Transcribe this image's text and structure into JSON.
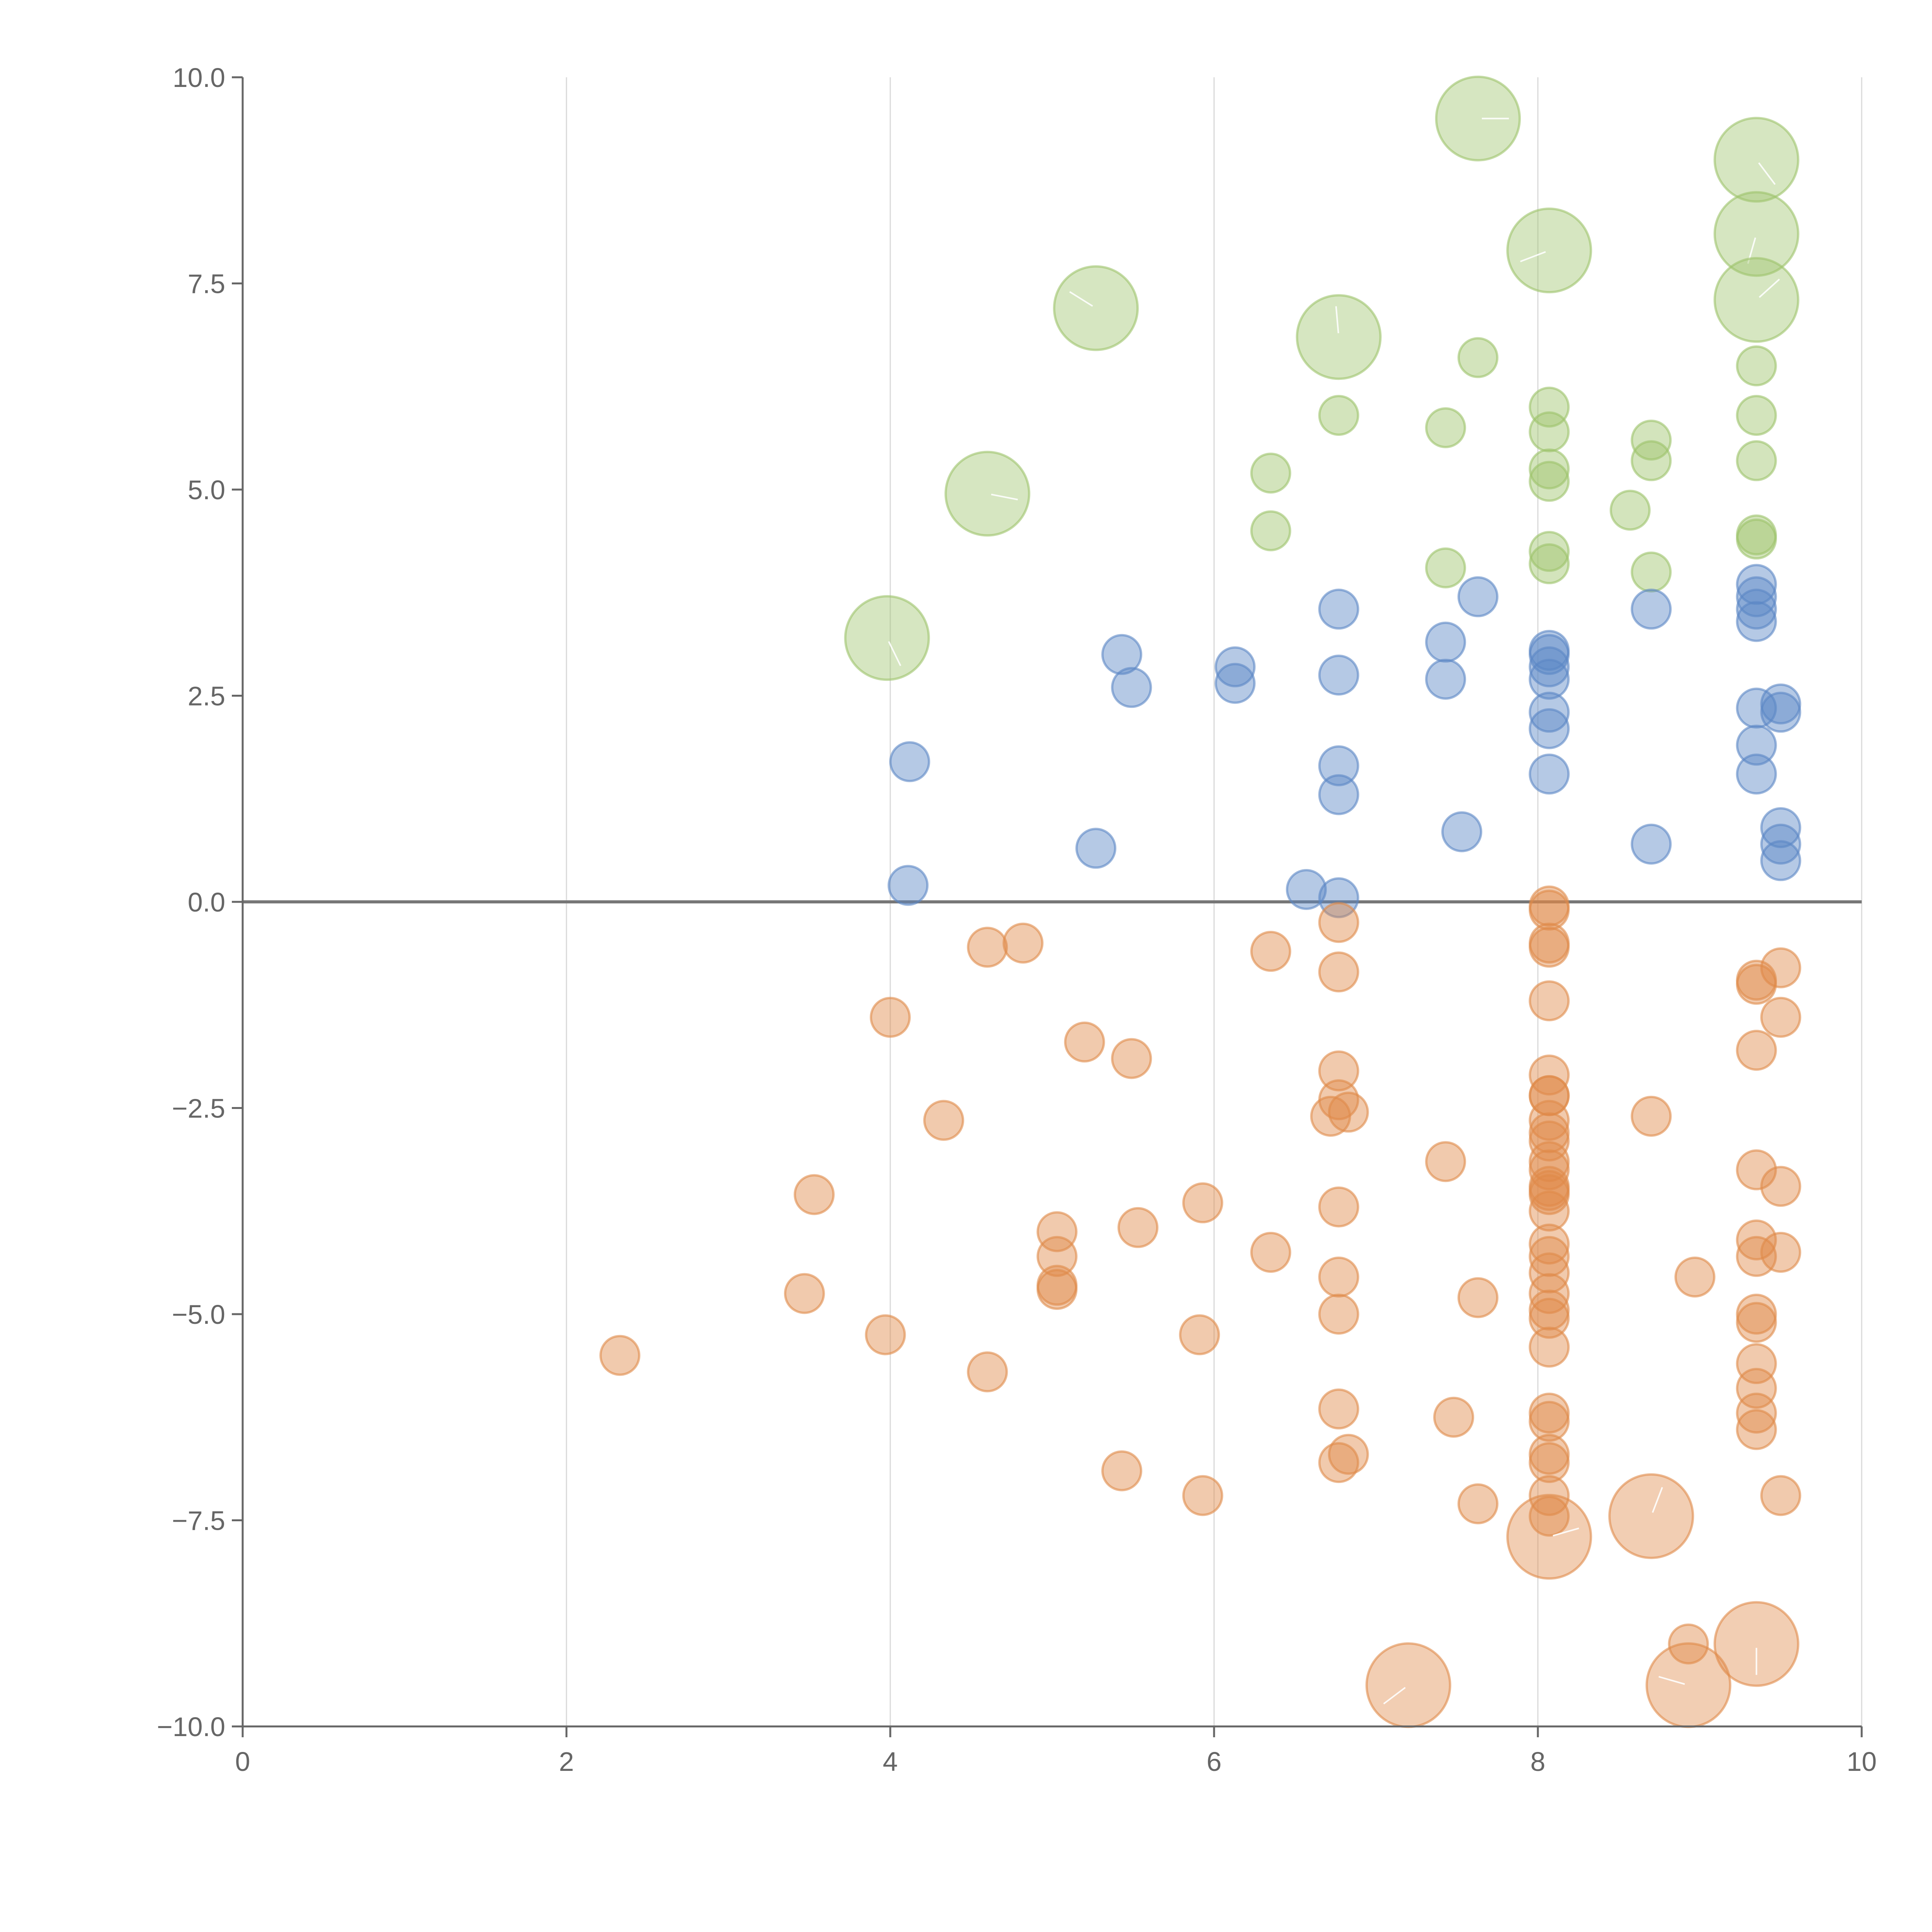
{
  "chart_data": {
    "type": "scatter",
    "title": "",
    "xlabel": "",
    "ylabel": "",
    "xlim": [
      0,
      10
    ],
    "ylim": [
      -10,
      10
    ],
    "x_ticks": [
      0,
      2,
      4,
      6,
      8,
      10
    ],
    "x_tick_labels": [
      "0",
      "2",
      "4",
      "6",
      "8",
      "10"
    ],
    "y_ticks": [
      10,
      7.5,
      5,
      2.5,
      0,
      -2.5,
      -5,
      -7.5,
      -10
    ],
    "y_tick_labels": [
      "10.0",
      "7.5",
      "5.0",
      "2.5",
      "0.0",
      "−2.5",
      "−5.0",
      "−7.5",
      "−10.0"
    ],
    "grid": "vertical",
    "reference_line_y": 0,
    "colors": {
      "green": "#9dc36b",
      "blue": "#5b87c5",
      "orange": "#e08a4a"
    },
    "series": [
      {
        "name": "green",
        "color": "#9dc36b",
        "points": [
          [
            7.63,
            9.5,
            "l"
          ],
          [
            9.35,
            9.0,
            "l"
          ],
          [
            9.35,
            8.1,
            "l"
          ],
          [
            8.07,
            7.9,
            "l"
          ],
          [
            5.27,
            7.2,
            "l"
          ],
          [
            6.77,
            6.85,
            "l"
          ],
          [
            9.35,
            7.3,
            "l"
          ],
          [
            4.6,
            4.95,
            "l"
          ],
          [
            3.98,
            3.2,
            "l"
          ],
          [
            7.63,
            6.6,
            "s"
          ],
          [
            9.35,
            6.5,
            "s"
          ],
          [
            6.77,
            5.9,
            "s"
          ],
          [
            7.43,
            5.75,
            "s"
          ],
          [
            8.07,
            6.0,
            "s"
          ],
          [
            8.07,
            5.7,
            "s"
          ],
          [
            9.35,
            5.9,
            "s"
          ],
          [
            8.7,
            5.6,
            "s"
          ],
          [
            8.7,
            5.35,
            "s"
          ],
          [
            9.35,
            5.35,
            "s"
          ],
          [
            6.35,
            5.2,
            "s"
          ],
          [
            8.07,
            5.25,
            "s"
          ],
          [
            8.07,
            5.1,
            "s"
          ],
          [
            8.57,
            4.75,
            "s"
          ],
          [
            6.35,
            4.5,
            "s"
          ],
          [
            9.35,
            4.45,
            "s"
          ],
          [
            9.35,
            4.4,
            "s"
          ],
          [
            8.07,
            4.25,
            "s"
          ],
          [
            8.07,
            4.1,
            "s"
          ],
          [
            7.43,
            4.05,
            "s"
          ],
          [
            8.7,
            4.0,
            "s"
          ]
        ]
      },
      {
        "name": "blue",
        "color": "#5b87c5",
        "points": [
          [
            6.77,
            3.55,
            "s"
          ],
          [
            7.63,
            3.7,
            "s"
          ],
          [
            8.7,
            3.55,
            "s"
          ],
          [
            9.35,
            3.85,
            "s"
          ],
          [
            9.35,
            3.7,
            "s"
          ],
          [
            9.35,
            3.55,
            "s"
          ],
          [
            9.35,
            3.4,
            "s"
          ],
          [
            5.43,
            3.0,
            "s"
          ],
          [
            7.43,
            3.15,
            "s"
          ],
          [
            8.07,
            3.05,
            "s"
          ],
          [
            8.07,
            3.0,
            "s"
          ],
          [
            8.07,
            2.85,
            "s"
          ],
          [
            6.13,
            2.85,
            "s"
          ],
          [
            6.77,
            2.75,
            "s"
          ],
          [
            7.43,
            2.7,
            "s"
          ],
          [
            8.07,
            2.7,
            "s"
          ],
          [
            6.13,
            2.65,
            "s"
          ],
          [
            5.49,
            2.6,
            "s"
          ],
          [
            9.5,
            2.4,
            "s"
          ],
          [
            9.35,
            2.35,
            "s"
          ],
          [
            8.07,
            2.3,
            "s"
          ],
          [
            9.5,
            2.3,
            "s"
          ],
          [
            8.07,
            2.1,
            "s"
          ],
          [
            9.35,
            1.9,
            "s"
          ],
          [
            4.12,
            1.7,
            "s"
          ],
          [
            6.77,
            1.65,
            "s"
          ],
          [
            8.07,
            1.55,
            "s"
          ],
          [
            9.35,
            1.55,
            "s"
          ],
          [
            6.77,
            1.3,
            "s"
          ],
          [
            9.5,
            0.9,
            "s"
          ],
          [
            7.53,
            0.85,
            "s"
          ],
          [
            9.5,
            0.7,
            "s"
          ],
          [
            8.7,
            0.7,
            "s"
          ],
          [
            5.27,
            0.65,
            "s"
          ],
          [
            9.5,
            0.5,
            "s"
          ],
          [
            4.11,
            0.2,
            "s"
          ],
          [
            6.57,
            0.15,
            "s"
          ],
          [
            6.77,
            0.05,
            "s"
          ]
        ]
      },
      {
        "name": "orange",
        "color": "#e08a4a",
        "points": [
          [
            8.07,
            -0.05,
            "s"
          ],
          [
            8.07,
            -0.1,
            "s"
          ],
          [
            6.77,
            -0.25,
            "s"
          ],
          [
            8.07,
            -0.5,
            "s"
          ],
          [
            8.07,
            -0.55,
            "s"
          ],
          [
            4.6,
            -0.55,
            "s"
          ],
          [
            4.82,
            -0.5,
            "s"
          ],
          [
            6.35,
            -0.6,
            "s"
          ],
          [
            9.5,
            -0.8,
            "s"
          ],
          [
            6.77,
            -0.85,
            "s"
          ],
          [
            9.35,
            -0.95,
            "s"
          ],
          [
            9.35,
            -1.0,
            "s"
          ],
          [
            8.07,
            -1.2,
            "s"
          ],
          [
            4.0,
            -1.4,
            "s"
          ],
          [
            9.5,
            -1.4,
            "s"
          ],
          [
            5.2,
            -1.7,
            "s"
          ],
          [
            9.35,
            -1.8,
            "s"
          ],
          [
            5.49,
            -1.9,
            "s"
          ],
          [
            6.77,
            -2.05,
            "s"
          ],
          [
            8.07,
            -2.1,
            "s"
          ],
          [
            8.07,
            -2.35,
            "s"
          ],
          [
            8.07,
            -2.35,
            "s"
          ],
          [
            6.77,
            -2.4,
            "s"
          ],
          [
            6.72,
            -2.6,
            "s"
          ],
          [
            6.83,
            -2.55,
            "s"
          ],
          [
            8.7,
            -2.6,
            "s"
          ],
          [
            4.33,
            -2.65,
            "s"
          ],
          [
            8.07,
            -2.65,
            "s"
          ],
          [
            8.07,
            -2.8,
            "s"
          ],
          [
            8.07,
            -2.9,
            "s"
          ],
          [
            7.43,
            -3.15,
            "s"
          ],
          [
            8.07,
            -3.15,
            "s"
          ],
          [
            8.07,
            -3.25,
            "s"
          ],
          [
            9.35,
            -3.25,
            "s"
          ],
          [
            8.07,
            -3.45,
            "s"
          ],
          [
            8.07,
            -3.5,
            "s"
          ],
          [
            8.07,
            -3.55,
            "s"
          ],
          [
            9.5,
            -3.45,
            "s"
          ],
          [
            3.53,
            -3.55,
            "s"
          ],
          [
            5.93,
            -3.65,
            "s"
          ],
          [
            6.77,
            -3.7,
            "s"
          ],
          [
            8.07,
            -3.75,
            "s"
          ],
          [
            5.53,
            -3.95,
            "s"
          ],
          [
            5.03,
            -4.0,
            "s"
          ],
          [
            9.35,
            -4.1,
            "s"
          ],
          [
            8.07,
            -4.15,
            "s"
          ],
          [
            6.35,
            -4.25,
            "s"
          ],
          [
            8.07,
            -4.3,
            "s"
          ],
          [
            9.35,
            -4.3,
            "s"
          ],
          [
            9.5,
            -4.25,
            "s"
          ],
          [
            5.03,
            -4.3,
            "s"
          ],
          [
            8.07,
            -4.5,
            "s"
          ],
          [
            6.77,
            -4.55,
            "s"
          ],
          [
            8.97,
            -4.55,
            "s"
          ],
          [
            5.03,
            -4.65,
            "s"
          ],
          [
            5.03,
            -4.7,
            "s"
          ],
          [
            8.07,
            -4.75,
            "s"
          ],
          [
            3.47,
            -4.75,
            "s"
          ],
          [
            7.63,
            -4.8,
            "s"
          ],
          [
            8.07,
            -4.95,
            "s"
          ],
          [
            9.35,
            -5.0,
            "s"
          ],
          [
            6.77,
            -5.0,
            "s"
          ],
          [
            8.07,
            -5.05,
            "s"
          ],
          [
            9.35,
            -5.1,
            "s"
          ],
          [
            3.97,
            -5.25,
            "s"
          ],
          [
            5.91,
            -5.25,
            "s"
          ],
          [
            8.07,
            -5.4,
            "s"
          ],
          [
            2.33,
            -5.5,
            "s"
          ],
          [
            9.35,
            -5.6,
            "s"
          ],
          [
            4.6,
            -5.7,
            "s"
          ],
          [
            9.35,
            -5.9,
            "s"
          ],
          [
            6.77,
            -6.15,
            "s"
          ],
          [
            8.07,
            -6.2,
            "s"
          ],
          [
            9.35,
            -6.2,
            "s"
          ],
          [
            7.48,
            -6.25,
            "s"
          ],
          [
            8.07,
            -6.3,
            "s"
          ],
          [
            9.35,
            -6.4,
            "s"
          ],
          [
            8.07,
            -6.7,
            "s"
          ],
          [
            6.83,
            -6.7,
            "s"
          ],
          [
            6.77,
            -6.8,
            "s"
          ],
          [
            8.07,
            -6.8,
            "s"
          ],
          [
            5.43,
            -6.9,
            "s"
          ],
          [
            5.93,
            -7.2,
            "s"
          ],
          [
            9.5,
            -7.2,
            "s"
          ],
          [
            8.07,
            -7.2,
            "s"
          ],
          [
            7.63,
            -7.3,
            "s"
          ],
          [
            8.07,
            -7.45,
            "s"
          ],
          [
            8.7,
            -7.45,
            "l"
          ],
          [
            8.07,
            -7.7,
            "l"
          ],
          [
            8.93,
            -9.0,
            "s"
          ],
          [
            9.35,
            -9.0,
            "l"
          ],
          [
            7.2,
            -9.5,
            "l"
          ],
          [
            8.93,
            -9.5,
            "l"
          ]
        ]
      }
    ]
  }
}
